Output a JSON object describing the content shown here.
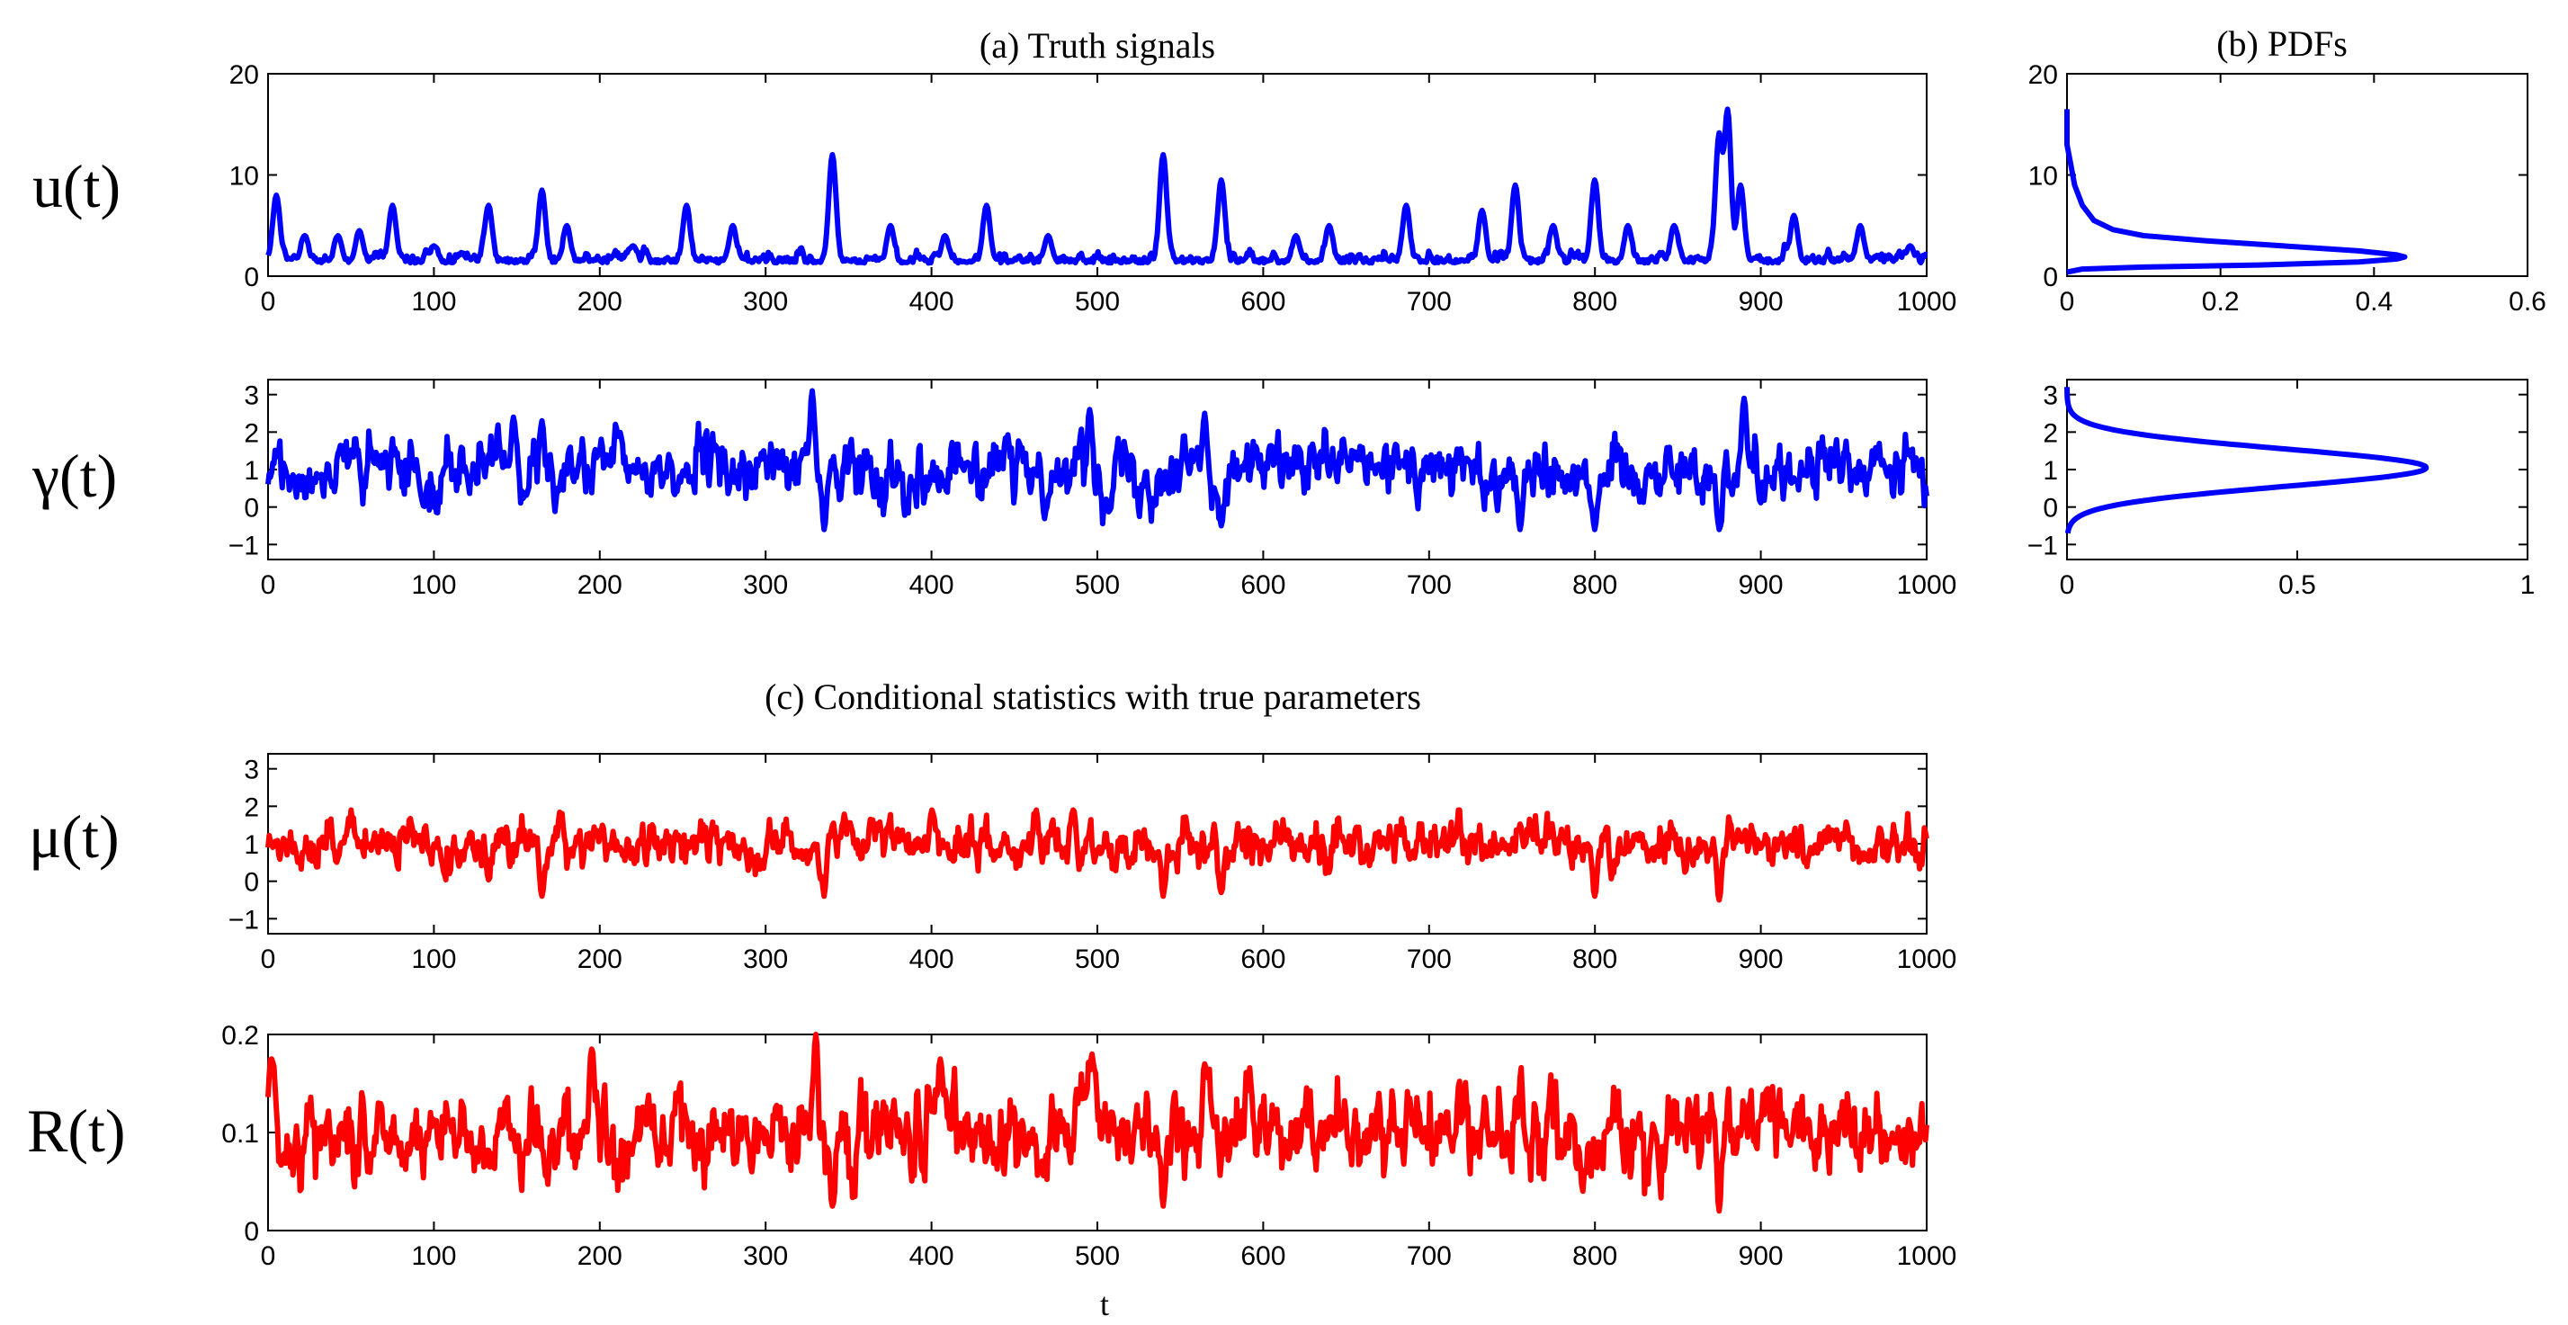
{
  "figure": {
    "title_a": "(a)  Truth signals",
    "title_b": "(b)  PDFs",
    "title_c": "(c)  Conditional statistics with true parameters",
    "xlabel": "t"
  },
  "colors": {
    "truth": "#0000ff",
    "conditional": "#ff0000",
    "axis": "#000000"
  },
  "chart_data": [
    {
      "id": "u",
      "type": "line",
      "ylabel": "u(t)",
      "color": "#0000ff",
      "xlim": [
        0,
        1000
      ],
      "ylim": [
        0,
        20
      ],
      "xticks": [
        "0",
        "100",
        "200",
        "300",
        "400",
        "500",
        "600",
        "700",
        "800",
        "900",
        "1000"
      ],
      "yticks": [
        "0",
        "10",
        "20"
      ],
      "base": 2,
      "noise": 0.7,
      "clip": [
        0.3,
        18
      ],
      "spikes": [
        [
          5,
          8
        ],
        [
          22,
          4
        ],
        [
          42,
          4
        ],
        [
          55,
          4.5
        ],
        [
          75,
          7
        ],
        [
          100,
          3
        ],
        [
          133,
          7
        ],
        [
          165,
          8.5
        ],
        [
          180,
          5
        ],
        [
          220,
          3
        ],
        [
          252,
          7
        ],
        [
          280,
          5
        ],
        [
          340,
          12
        ],
        [
          375,
          5
        ],
        [
          408,
          4
        ],
        [
          433,
          7
        ],
        [
          470,
          4
        ],
        [
          540,
          12
        ],
        [
          575,
          9.5
        ],
        [
          620,
          4
        ],
        [
          640,
          5
        ],
        [
          686,
          7
        ],
        [
          732,
          6.5
        ],
        [
          752,
          9
        ],
        [
          775,
          5
        ],
        [
          800,
          9.5
        ],
        [
          820,
          5
        ],
        [
          848,
          5
        ],
        [
          875,
          14
        ],
        [
          880,
          16.5
        ],
        [
          888,
          9
        ],
        [
          920,
          6
        ],
        [
          960,
          5
        ],
        [
          990,
          3
        ]
      ]
    },
    {
      "id": "gamma",
      "type": "line",
      "ylabel": "γ(t)",
      "color": "#0000ff",
      "xlim": [
        0,
        1000
      ],
      "ylim": [
        -1.4,
        3.4
      ],
      "xticks": [
        "0",
        "100",
        "200",
        "300",
        "400",
        "500",
        "600",
        "700",
        "800",
        "900",
        "1000"
      ],
      "yticks": [
        "-1",
        "0",
        "1",
        "2",
        "3"
      ],
      "mean": 1.0,
      "sd": 0.55,
      "clip": [
        -0.7,
        3.1
      ],
      "extremes": [
        [
          328,
          3.1
        ],
        [
          335,
          -0.6
        ],
        [
          148,
          2.4
        ],
        [
          165,
          2.3
        ],
        [
          495,
          2.6
        ],
        [
          565,
          2.5
        ],
        [
          575,
          -0.5
        ],
        [
          755,
          -0.6
        ],
        [
          800,
          -0.6
        ],
        [
          875,
          -0.6
        ],
        [
          890,
          2.9
        ]
      ]
    },
    {
      "id": "mu",
      "type": "line",
      "ylabel": "μ(t)",
      "color": "#ff0000",
      "xlim": [
        0,
        1000
      ],
      "ylim": [
        -1.4,
        3.4
      ],
      "xticks": [
        "0",
        "100",
        "200",
        "300",
        "400",
        "500",
        "600",
        "700",
        "800",
        "900",
        "1000"
      ],
      "yticks": [
        "-1",
        "0",
        "1",
        "2",
        "3"
      ],
      "mean": 1.0,
      "sd": 0.42,
      "clip": [
        -0.5,
        1.9
      ],
      "extremes": [
        [
          165,
          -0.4
        ],
        [
          335,
          -0.4
        ],
        [
          540,
          -0.4
        ],
        [
          575,
          -0.3
        ],
        [
          800,
          -0.4
        ],
        [
          875,
          -0.5
        ],
        [
          485,
          1.9
        ],
        [
          400,
          1.9
        ]
      ]
    },
    {
      "id": "R",
      "type": "line",
      "ylabel": "R(t)",
      "color": "#ff0000",
      "xlim": [
        0,
        1000
      ],
      "ylim": [
        0,
        0.2
      ],
      "xticks": [
        "0",
        "100",
        "200",
        "300",
        "400",
        "500",
        "600",
        "700",
        "800",
        "900",
        "1000"
      ],
      "yticks": [
        "0",
        "0.1",
        "0.2"
      ],
      "mean": 0.1,
      "sd": 0.03,
      "clip": [
        0.015,
        0.2
      ],
      "extremes": [
        [
          2,
          0.175
        ],
        [
          330,
          0.2
        ],
        [
          340,
          0.025
        ],
        [
          540,
          0.025
        ],
        [
          875,
          0.02
        ],
        [
          405,
          0.175
        ],
        [
          195,
          0.185
        ],
        [
          497,
          0.18
        ],
        [
          565,
          0.17
        ]
      ]
    },
    {
      "id": "pdf_u",
      "type": "line",
      "title": "(b)  PDFs",
      "color": "#0000ff",
      "xlim": [
        0,
        0.6
      ],
      "ylim": [
        0,
        20
      ],
      "xticks": [
        "0",
        "0.2",
        "0.4",
        "0.6"
      ],
      "yticks": [
        "0",
        "10",
        "20"
      ],
      "points": [
        [
          0.0,
          0.4
        ],
        [
          0.02,
          0.7
        ],
        [
          0.1,
          0.9
        ],
        [
          0.25,
          1.1
        ],
        [
          0.38,
          1.4
        ],
        [
          0.43,
          1.7
        ],
        [
          0.44,
          1.9
        ],
        [
          0.43,
          2.1
        ],
        [
          0.38,
          2.5
        ],
        [
          0.28,
          3.0
        ],
        [
          0.18,
          3.5
        ],
        [
          0.1,
          4.0
        ],
        [
          0.06,
          4.6
        ],
        [
          0.035,
          5.5
        ],
        [
          0.02,
          7
        ],
        [
          0.01,
          9
        ],
        [
          0.005,
          11
        ],
        [
          0.0,
          13
        ],
        [
          0.0,
          16.5
        ]
      ]
    },
    {
      "id": "pdf_gamma",
      "type": "line",
      "color": "#0000ff",
      "xlim": [
        0,
        1
      ],
      "ylim": [
        -1.4,
        3.4
      ],
      "xticks": [
        "0",
        "0.5",
        "1"
      ],
      "yticks": [
        "-1",
        "0",
        "1",
        "2",
        "3"
      ],
      "peak": 0.78,
      "mode": 1.05,
      "sd": 0.5,
      "yrange": [
        -0.7,
        3.2
      ]
    }
  ]
}
